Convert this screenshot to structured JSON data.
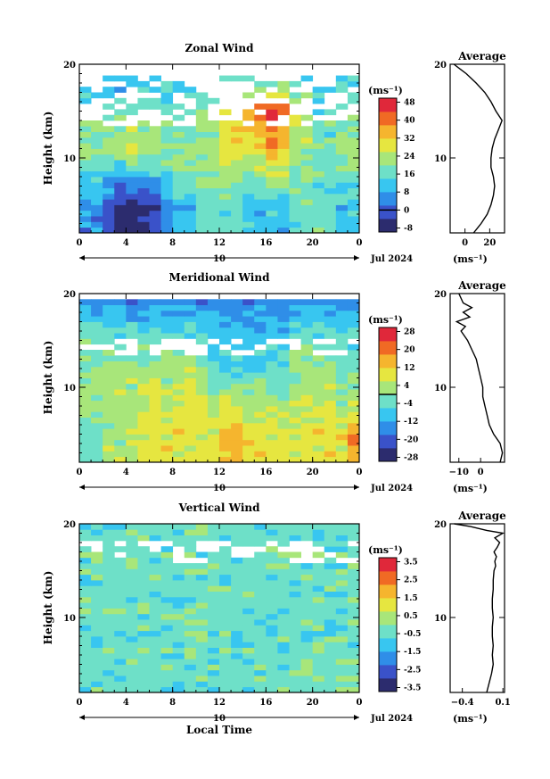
{
  "figure": {
    "date_label": "Jul 2024",
    "xlabel": "Local Time",
    "ylabel": "Height (km)",
    "unit": "(ms⁻¹)",
    "profile_title": "Average",
    "day_label": "10",
    "x_ticks": [
      "0",
      "4",
      "8",
      "12",
      "16",
      "20",
      "0"
    ],
    "y_ticks": [
      "20",
      "10"
    ]
  },
  "chart_data": [
    {
      "type": "heatmap",
      "title": "Zonal Wind",
      "xlabel": "",
      "ylabel": "Height (km)",
      "xlim": [
        0,
        24
      ],
      "ylim": [
        2,
        20
      ],
      "colorbar_ticks": [
        "48",
        "40",
        "32",
        "24",
        "16",
        "8",
        "0",
        "-8"
      ],
      "colorbar_range": [
        -8,
        48
      ],
      "zero_line_value": 0,
      "colors": [
        "#2c2c6e",
        "#3a52c9",
        "#2f8ee8",
        "#38c6f0",
        "#6ee0c8",
        "#a8e67a",
        "#e6e640",
        "#f5b52e",
        "#f06a24",
        "#e0283a"
      ],
      "field": {
        "gx": 24,
        "surface": [
          2,
          2,
          1,
          0,
          0,
          0,
          1,
          2,
          3,
          3,
          4,
          4,
          4,
          4,
          3,
          3,
          3,
          3,
          4,
          4,
          4,
          4,
          3,
          3
        ],
        "mid": [
          5,
          5,
          5,
          5,
          6,
          5,
          5,
          5,
          5,
          5,
          5,
          5,
          6,
          6,
          6,
          6,
          7,
          7,
          5,
          5,
          4,
          4,
          5,
          5
        ],
        "upper": [
          4,
          4,
          4,
          4,
          4,
          4,
          4,
          4,
          4,
          4,
          5,
          5,
          6,
          7,
          7,
          8,
          9,
          8,
          6,
          5,
          4,
          4,
          4,
          4
        ],
        "top": [
          2,
          2,
          2,
          2,
          3,
          3,
          3,
          3,
          3,
          3,
          3,
          3,
          3,
          3,
          3,
          3,
          3,
          3,
          3,
          3,
          3,
          3,
          3,
          3
        ]
      },
      "profile": {
        "xlim": [
          -12,
          32
        ],
        "x_ticks": [
          "0",
          "20"
        ],
        "x_tick_values": [
          0,
          20
        ],
        "heights": [
          2,
          3,
          4,
          5,
          6,
          7,
          8,
          9,
          10,
          11,
          12,
          13,
          14,
          15,
          16,
          17,
          18,
          19,
          19.5,
          20
        ],
        "values": [
          7,
          13,
          18,
          21,
          23,
          24,
          23,
          21,
          21,
          22,
          24,
          27,
          30,
          25,
          21,
          16,
          9,
          1,
          -4,
          -9
        ]
      }
    },
    {
      "type": "heatmap",
      "title": "Meridional Wind",
      "xlabel": "",
      "ylabel": "Height (km)",
      "xlim": [
        0,
        24
      ],
      "ylim": [
        2,
        20
      ],
      "colorbar_ticks": [
        "28",
        "20",
        "12",
        "4",
        "-4",
        "-12",
        "-20",
        "-28"
      ],
      "colorbar_range": [
        -28,
        28
      ],
      "zero_line_value": 0,
      "colors": [
        "#2c2c6e",
        "#3a52c9",
        "#2f8ee8",
        "#38c6f0",
        "#6ee0c8",
        "#a8e67a",
        "#e6e640",
        "#f5b52e",
        "#f06a24",
        "#e0283a"
      ],
      "field": {
        "gx": 24,
        "surface": [
          4,
          4,
          5,
          5,
          5,
          6,
          6,
          6,
          6,
          6,
          6,
          6,
          7,
          7,
          6,
          6,
          6,
          6,
          6,
          6,
          6,
          6,
          6,
          7
        ],
        "mid": [
          5,
          5,
          5,
          5,
          5,
          5,
          5,
          5,
          5,
          6,
          5,
          4,
          4,
          4,
          4,
          4,
          4,
          4,
          5,
          5,
          5,
          5,
          4,
          4
        ],
        "upper": [
          4,
          4,
          4,
          4,
          4,
          4,
          4,
          4,
          4,
          4,
          4,
          3,
          3,
          3,
          3,
          3,
          3,
          3,
          4,
          4,
          4,
          4,
          4,
          4
        ],
        "top": [
          2,
          2,
          2,
          2,
          2,
          2,
          2,
          2,
          2,
          2,
          2,
          2,
          2,
          2,
          2,
          2,
          2,
          2,
          2,
          2,
          2,
          2,
          2,
          2
        ]
      },
      "profile": {
        "xlim": [
          -14,
          11
        ],
        "x_ticks": [
          "−10",
          "0"
        ],
        "x_tick_values": [
          -10,
          0
        ],
        "heights": [
          2,
          3,
          4,
          5,
          6,
          7,
          8,
          9,
          10,
          11,
          12,
          13,
          14,
          15,
          16,
          16.5,
          17,
          17.5,
          18,
          18.5,
          19,
          20
        ],
        "values": [
          9,
          10,
          9,
          6,
          4,
          3,
          2,
          1,
          1,
          0,
          -1,
          -2,
          -4,
          -6,
          -9,
          -7,
          -11,
          -5,
          -8,
          -4,
          -8,
          -10
        ]
      }
    },
    {
      "type": "heatmap",
      "title": "Vertical Wind",
      "xlabel": "Local Time",
      "ylabel": "Height (km)",
      "xlim": [
        0,
        24
      ],
      "ylim": [
        2,
        20
      ],
      "colorbar_ticks": [
        "3.5",
        "2.5",
        "1.5",
        "0.5",
        "-0.5",
        "-1.5",
        "-2.5",
        "-3.5"
      ],
      "colorbar_range": [
        -3.5,
        3.5
      ],
      "zero_line_value": null,
      "colors": [
        "#2c2c6e",
        "#3a52c9",
        "#2f8ee8",
        "#38c6f0",
        "#6ee0c8",
        "#a8e67a",
        "#e6e640",
        "#f5b52e",
        "#f06a24",
        "#e0283a"
      ],
      "field": {
        "gx": 24,
        "surface": [
          4,
          4,
          4,
          4,
          4,
          4,
          4,
          4,
          4,
          4,
          4,
          4,
          4,
          4,
          4,
          4,
          4,
          4,
          4,
          4,
          4,
          4,
          4,
          4
        ],
        "mid": [
          4,
          4,
          4,
          4,
          4,
          4,
          4,
          4,
          4,
          4,
          4,
          4,
          4,
          4,
          4,
          4,
          4,
          4,
          4,
          4,
          4,
          4,
          4,
          4
        ],
        "upper": [
          4,
          4,
          4,
          4,
          4,
          4,
          4,
          4,
          4,
          4,
          4,
          4,
          4,
          4,
          4,
          4,
          4,
          4,
          4,
          4,
          4,
          4,
          4,
          4
        ],
        "top": [
          4,
          4,
          4,
          4,
          4,
          4,
          4,
          4,
          4,
          4,
          4,
          4,
          4,
          4,
          4,
          4,
          4,
          4,
          4,
          4,
          4,
          4,
          4,
          4
        ]
      },
      "profile": {
        "xlim": [
          -0.55,
          0.12
        ],
        "x_ticks": [
          "−0.4",
          "0.1"
        ],
        "x_tick_values": [
          -0.4,
          0.1
        ],
        "heights": [
          2,
          3,
          4,
          5,
          6,
          7,
          8,
          9,
          10,
          11,
          12,
          13,
          14,
          15,
          15.5,
          16,
          16.5,
          17,
          17.5,
          18,
          18.5,
          19,
          19.3,
          19.7,
          20
        ],
        "values": [
          -0.1,
          -0.07,
          -0.04,
          -0.02,
          -0.03,
          -0.02,
          -0.03,
          -0.03,
          -0.02,
          -0.03,
          -0.03,
          -0.02,
          -0.02,
          -0.01,
          0.01,
          0.0,
          0.02,
          -0.01,
          0.03,
          0.06,
          0.0,
          0.1,
          -0.1,
          -0.3,
          -0.5
        ]
      }
    }
  ]
}
